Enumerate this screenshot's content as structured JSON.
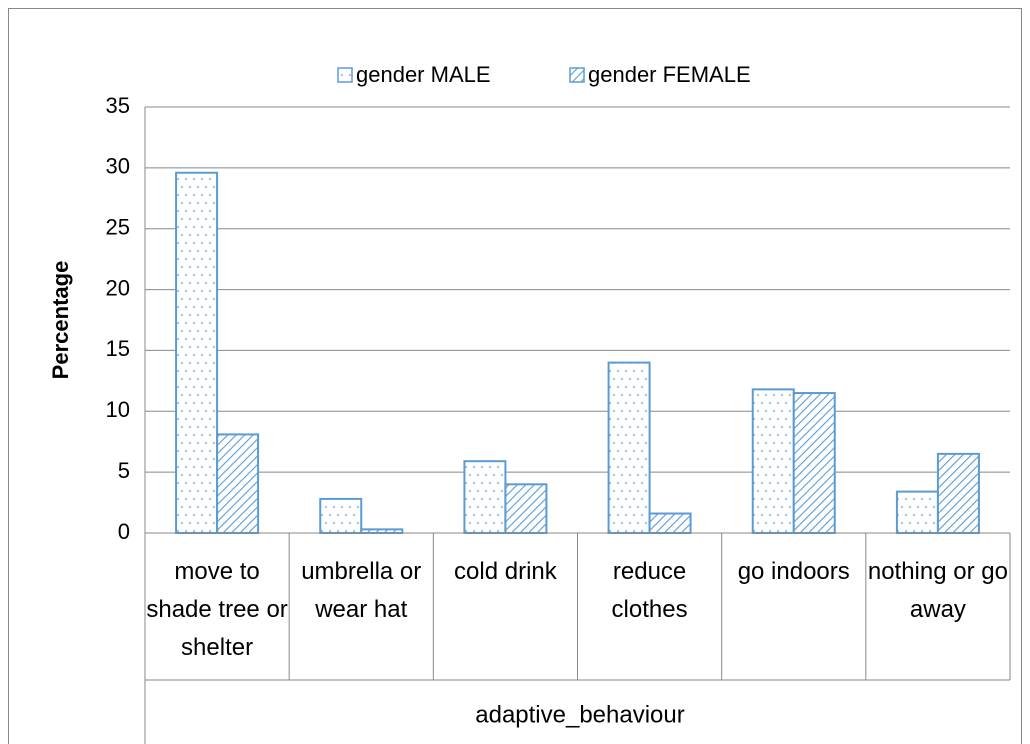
{
  "chart_data": {
    "type": "bar",
    "categories": [
      "move to shade tree or shelter",
      "umbrella or wear hat",
      "cold drink",
      "reduce clothes",
      "go indoors",
      "nothing or go away"
    ],
    "series": [
      {
        "name": "gender MALE",
        "color": "#5b9bd5",
        "pattern": "dots",
        "values": [
          29.6,
          2.8,
          5.9,
          14.0,
          11.8,
          3.4
        ]
      },
      {
        "name": "gender FEMALE",
        "color": "#5b9bd5",
        "pattern": "hatch",
        "values": [
          8.1,
          0.3,
          4.0,
          1.6,
          11.5,
          6.5
        ]
      }
    ],
    "ylabel": "Percentage",
    "xlabel": "adaptive_behaviour",
    "ylim": [
      0,
      35
    ],
    "yticks": [
      0,
      5,
      10,
      15,
      20,
      25,
      30,
      35
    ],
    "grid": true,
    "legend": "top"
  }
}
